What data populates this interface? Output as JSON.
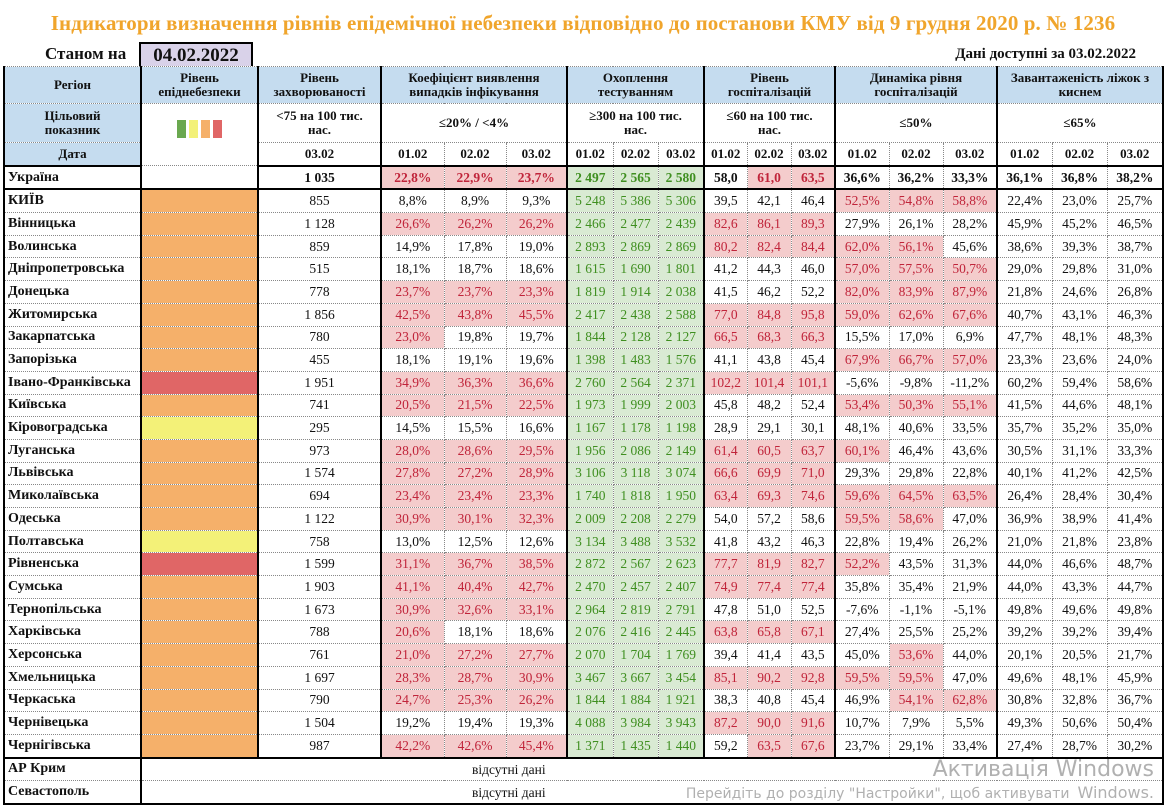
{
  "title": "Індикатори визначення рівнів епідемічної небезпеки відповідно до постанови КМУ від 9 грудня 2020 р. № 1236",
  "as_of_label": "Станом на",
  "as_of_date": "04.02.2022",
  "available_label": "Дані доступні за  03.02.2022",
  "headers": {
    "region": "Регіон",
    "level": "Рівень епіднебезпеки",
    "rate": "Рівень захворюваності",
    "coef": "Коефіцієнт виявлення випадків інфікування",
    "testing": "Охоплення тестуванням",
    "hosp": "Рівень госпіталізацій",
    "dyn": "Динаміка рівня госпіталізацій",
    "beds": "Завантаженість ліжок з киснем",
    "target_label": "Цільовий показник",
    "target_rate": "<75 на 100 тис. нас.",
    "target_coef": "≤20% / <4%",
    "target_testing": "≥300 на 100 тис. нас.",
    "target_hosp": "≤60 на 100 тис. нас.",
    "target_dyn": "≤50%",
    "target_beds": "≤65%",
    "date_label": "Дата",
    "rate_date": "03.02",
    "dates": [
      "01.02",
      "02.02",
      "03.02"
    ]
  },
  "level_colors": {
    "green": "#6aa84f",
    "yellow": "#f3f178",
    "orange": "#f5b06a",
    "red": "#e06666"
  },
  "rows": [
    {
      "name": "Україна",
      "level": "",
      "rate": "1 035",
      "coef": [
        "22,8%",
        "22,9%",
        "23,7%"
      ],
      "coef_bad": [
        1,
        1,
        1
      ],
      "test": [
        "2 497",
        "2 565",
        "2 580"
      ],
      "hosp": [
        "58,0",
        "61,0",
        "63,5"
      ],
      "hosp_bad": [
        0,
        1,
        1
      ],
      "dyn": [
        "36,6%",
        "36,2%",
        "33,3%"
      ],
      "dyn_bad": [
        0,
        0,
        0
      ],
      "beds": [
        "36,1%",
        "36,8%",
        "38,2%"
      ]
    },
    {
      "name": "КИЇВ",
      "level": "o",
      "rate": "855",
      "coef": [
        "8,8%",
        "8,9%",
        "9,3%"
      ],
      "coef_bad": [
        0,
        0,
        0
      ],
      "test": [
        "5 248",
        "5 386",
        "5 306"
      ],
      "hosp": [
        "39,5",
        "42,1",
        "46,4"
      ],
      "hosp_bad": [
        0,
        0,
        0
      ],
      "dyn": [
        "52,5%",
        "54,8%",
        "58,8%"
      ],
      "dyn_bad": [
        1,
        1,
        1
      ],
      "beds": [
        "22,4%",
        "23,0%",
        "25,7%"
      ]
    },
    {
      "name": "Вінницька",
      "level": "o",
      "rate": "1 128",
      "coef": [
        "26,6%",
        "26,2%",
        "26,2%"
      ],
      "coef_bad": [
        1,
        1,
        1
      ],
      "test": [
        "2 466",
        "2 477",
        "2 439"
      ],
      "hosp": [
        "82,6",
        "86,1",
        "89,3"
      ],
      "hosp_bad": [
        1,
        1,
        1
      ],
      "dyn": [
        "27,9%",
        "26,1%",
        "28,2%"
      ],
      "dyn_bad": [
        0,
        0,
        0
      ],
      "beds": [
        "45,9%",
        "45,2%",
        "46,5%"
      ]
    },
    {
      "name": "Волинська",
      "level": "o",
      "rate": "859",
      "coef": [
        "14,9%",
        "17,8%",
        "19,0%"
      ],
      "coef_bad": [
        0,
        0,
        0
      ],
      "test": [
        "2 893",
        "2 869",
        "2 869"
      ],
      "hosp": [
        "80,2",
        "82,4",
        "84,4"
      ],
      "hosp_bad": [
        1,
        1,
        1
      ],
      "dyn": [
        "62,0%",
        "56,1%",
        "45,6%"
      ],
      "dyn_bad": [
        1,
        1,
        0
      ],
      "beds": [
        "38,6%",
        "39,3%",
        "38,7%"
      ]
    },
    {
      "name": "Дніпропетровська",
      "level": "o",
      "rate": "515",
      "coef": [
        "18,1%",
        "18,7%",
        "18,6%"
      ],
      "coef_bad": [
        0,
        0,
        0
      ],
      "test": [
        "1 615",
        "1 690",
        "1 801"
      ],
      "hosp": [
        "41,2",
        "44,3",
        "46,0"
      ],
      "hosp_bad": [
        0,
        0,
        0
      ],
      "dyn": [
        "57,0%",
        "57,5%",
        "50,7%"
      ],
      "dyn_bad": [
        1,
        1,
        1
      ],
      "beds": [
        "29,0%",
        "29,8%",
        "31,0%"
      ]
    },
    {
      "name": "Донецька",
      "level": "o",
      "rate": "778",
      "coef": [
        "23,7%",
        "23,7%",
        "23,3%"
      ],
      "coef_bad": [
        1,
        1,
        1
      ],
      "test": [
        "1 819",
        "1 914",
        "2 038"
      ],
      "hosp": [
        "41,5",
        "46,2",
        "52,2"
      ],
      "hosp_bad": [
        0,
        0,
        0
      ],
      "dyn": [
        "82,0%",
        "83,9%",
        "87,9%"
      ],
      "dyn_bad": [
        1,
        1,
        1
      ],
      "beds": [
        "21,8%",
        "24,6%",
        "26,8%"
      ]
    },
    {
      "name": "Житомирська",
      "level": "o",
      "rate": "1 856",
      "coef": [
        "42,5%",
        "43,8%",
        "45,5%"
      ],
      "coef_bad": [
        1,
        1,
        1
      ],
      "test": [
        "2 417",
        "2 438",
        "2 588"
      ],
      "hosp": [
        "77,0",
        "84,8",
        "95,8"
      ],
      "hosp_bad": [
        1,
        1,
        1
      ],
      "dyn": [
        "59,0%",
        "62,6%",
        "67,6%"
      ],
      "dyn_bad": [
        1,
        1,
        1
      ],
      "beds": [
        "40,7%",
        "43,1%",
        "46,3%"
      ]
    },
    {
      "name": "Закарпатська",
      "level": "o",
      "rate": "780",
      "coef": [
        "23,0%",
        "19,8%",
        "19,7%"
      ],
      "coef_bad": [
        1,
        0,
        0
      ],
      "test": [
        "1 844",
        "2 128",
        "2 127"
      ],
      "hosp": [
        "66,5",
        "68,3",
        "66,3"
      ],
      "hosp_bad": [
        1,
        1,
        1
      ],
      "dyn": [
        "15,5%",
        "17,0%",
        "6,9%"
      ],
      "dyn_bad": [
        0,
        0,
        0
      ],
      "beds": [
        "47,7%",
        "48,1%",
        "48,3%"
      ]
    },
    {
      "name": "Запорізька",
      "level": "o",
      "rate": "455",
      "coef": [
        "18,1%",
        "19,1%",
        "19,6%"
      ],
      "coef_bad": [
        0,
        0,
        0
      ],
      "test": [
        "1 398",
        "1 483",
        "1 576"
      ],
      "hosp": [
        "41,1",
        "43,8",
        "45,4"
      ],
      "hosp_bad": [
        0,
        0,
        0
      ],
      "dyn": [
        "67,9%",
        "66,7%",
        "57,0%"
      ],
      "dyn_bad": [
        1,
        1,
        1
      ],
      "beds": [
        "23,3%",
        "23,6%",
        "24,0%"
      ]
    },
    {
      "name": "Івано-Франківська",
      "level": "r",
      "rate": "1 951",
      "coef": [
        "34,9%",
        "36,3%",
        "36,6%"
      ],
      "coef_bad": [
        1,
        1,
        1
      ],
      "test": [
        "2 760",
        "2 564",
        "2 371"
      ],
      "hosp": [
        "102,2",
        "101,4",
        "101,1"
      ],
      "hosp_bad": [
        1,
        1,
        1
      ],
      "dyn": [
        "-5,6%",
        "-9,8%",
        "-11,2%"
      ],
      "dyn_bad": [
        0,
        0,
        0
      ],
      "beds": [
        "60,2%",
        "59,4%",
        "58,6%"
      ]
    },
    {
      "name": "Київська",
      "level": "o",
      "rate": "741",
      "coef": [
        "20,5%",
        "21,5%",
        "22,5%"
      ],
      "coef_bad": [
        1,
        1,
        1
      ],
      "test": [
        "1 973",
        "1 999",
        "2 003"
      ],
      "hosp": [
        "45,8",
        "48,2",
        "52,4"
      ],
      "hosp_bad": [
        0,
        0,
        0
      ],
      "dyn": [
        "53,4%",
        "50,3%",
        "55,1%"
      ],
      "dyn_bad": [
        1,
        1,
        1
      ],
      "beds": [
        "41,5%",
        "44,6%",
        "48,1%"
      ]
    },
    {
      "name": "Кіровоградська",
      "level": "y",
      "rate": "295",
      "coef": [
        "14,5%",
        "15,5%",
        "16,6%"
      ],
      "coef_bad": [
        0,
        0,
        0
      ],
      "test": [
        "1 167",
        "1 178",
        "1 198"
      ],
      "hosp": [
        "28,9",
        "29,1",
        "30,1"
      ],
      "hosp_bad": [
        0,
        0,
        0
      ],
      "dyn": [
        "48,1%",
        "40,6%",
        "33,5%"
      ],
      "dyn_bad": [
        0,
        0,
        0
      ],
      "beds": [
        "35,7%",
        "35,2%",
        "35,0%"
      ]
    },
    {
      "name": "Луганська",
      "level": "o",
      "rate": "973",
      "coef": [
        "28,0%",
        "28,6%",
        "29,5%"
      ],
      "coef_bad": [
        1,
        1,
        1
      ],
      "test": [
        "1 956",
        "2 086",
        "2 149"
      ],
      "hosp": [
        "61,4",
        "60,5",
        "63,7"
      ],
      "hosp_bad": [
        1,
        1,
        1
      ],
      "dyn": [
        "60,1%",
        "46,4%",
        "43,6%"
      ],
      "dyn_bad": [
        1,
        0,
        0
      ],
      "beds": [
        "30,5%",
        "31,1%",
        "33,3%"
      ]
    },
    {
      "name": "Львівська",
      "level": "o",
      "rate": "1 574",
      "coef": [
        "27,8%",
        "27,2%",
        "28,9%"
      ],
      "coef_bad": [
        1,
        1,
        1
      ],
      "test": [
        "3 106",
        "3 118",
        "3 074"
      ],
      "hosp": [
        "66,6",
        "69,9",
        "71,0"
      ],
      "hosp_bad": [
        1,
        1,
        1
      ],
      "dyn": [
        "29,3%",
        "29,8%",
        "22,8%"
      ],
      "dyn_bad": [
        0,
        0,
        0
      ],
      "beds": [
        "40,1%",
        "41,2%",
        "42,5%"
      ]
    },
    {
      "name": "Миколаївська",
      "level": "o",
      "rate": "694",
      "coef": [
        "23,4%",
        "23,4%",
        "23,3%"
      ],
      "coef_bad": [
        1,
        1,
        1
      ],
      "test": [
        "1 740",
        "1 818",
        "1 950"
      ],
      "hosp": [
        "63,4",
        "69,3",
        "74,6"
      ],
      "hosp_bad": [
        1,
        1,
        1
      ],
      "dyn": [
        "59,6%",
        "64,5%",
        "63,5%"
      ],
      "dyn_bad": [
        1,
        1,
        1
      ],
      "beds": [
        "26,4%",
        "28,4%",
        "30,4%"
      ]
    },
    {
      "name": "Одеська",
      "level": "o",
      "rate": "1 122",
      "coef": [
        "30,9%",
        "30,1%",
        "32,3%"
      ],
      "coef_bad": [
        1,
        1,
        1
      ],
      "test": [
        "2 009",
        "2 208",
        "2 279"
      ],
      "hosp": [
        "54,0",
        "57,2",
        "58,6"
      ],
      "hosp_bad": [
        0,
        0,
        0
      ],
      "dyn": [
        "59,5%",
        "58,6%",
        "47,0%"
      ],
      "dyn_bad": [
        1,
        1,
        0
      ],
      "beds": [
        "36,9%",
        "38,9%",
        "41,4%"
      ]
    },
    {
      "name": "Полтавська",
      "level": "y",
      "rate": "758",
      "coef": [
        "13,0%",
        "12,5%",
        "12,6%"
      ],
      "coef_bad": [
        0,
        0,
        0
      ],
      "test": [
        "3 134",
        "3 488",
        "3 532"
      ],
      "hosp": [
        "41,8",
        "43,2",
        "46,3"
      ],
      "hosp_bad": [
        0,
        0,
        0
      ],
      "dyn": [
        "22,8%",
        "19,4%",
        "26,2%"
      ],
      "dyn_bad": [
        0,
        0,
        0
      ],
      "beds": [
        "21,0%",
        "21,8%",
        "23,8%"
      ]
    },
    {
      "name": "Рівненська",
      "level": "r",
      "rate": "1 599",
      "coef": [
        "31,1%",
        "36,7%",
        "38,5%"
      ],
      "coef_bad": [
        1,
        1,
        1
      ],
      "test": [
        "2 872",
        "2 567",
        "2 623"
      ],
      "hosp": [
        "77,7",
        "81,9",
        "82,7"
      ],
      "hosp_bad": [
        1,
        1,
        1
      ],
      "dyn": [
        "52,2%",
        "43,5%",
        "31,3%"
      ],
      "dyn_bad": [
        1,
        0,
        0
      ],
      "beds": [
        "44,0%",
        "46,6%",
        "48,7%"
      ]
    },
    {
      "name": "Сумська",
      "level": "o",
      "rate": "1 903",
      "coef": [
        "41,1%",
        "40,4%",
        "42,7%"
      ],
      "coef_bad": [
        1,
        1,
        1
      ],
      "test": [
        "2 470",
        "2 457",
        "2 407"
      ],
      "hosp": [
        "74,9",
        "77,4",
        "77,4"
      ],
      "hosp_bad": [
        1,
        1,
        1
      ],
      "dyn": [
        "35,8%",
        "35,4%",
        "21,9%"
      ],
      "dyn_bad": [
        0,
        0,
        0
      ],
      "beds": [
        "44,0%",
        "43,3%",
        "44,7%"
      ]
    },
    {
      "name": "Тернопільська",
      "level": "o",
      "rate": "1 673",
      "coef": [
        "30,9%",
        "32,6%",
        "33,1%"
      ],
      "coef_bad": [
        1,
        1,
        1
      ],
      "test": [
        "2 964",
        "2 819",
        "2 791"
      ],
      "hosp": [
        "47,8",
        "51,0",
        "52,5"
      ],
      "hosp_bad": [
        0,
        0,
        0
      ],
      "dyn": [
        "-7,6%",
        "-1,1%",
        "-5,1%"
      ],
      "dyn_bad": [
        0,
        0,
        0
      ],
      "beds": [
        "49,8%",
        "49,6%",
        "49,8%"
      ]
    },
    {
      "name": "Харківська",
      "level": "o",
      "rate": "788",
      "coef": [
        "20,6%",
        "18,1%",
        "18,6%"
      ],
      "coef_bad": [
        1,
        0,
        0
      ],
      "test": [
        "2 076",
        "2 416",
        "2 445"
      ],
      "hosp": [
        "63,8",
        "65,8",
        "67,1"
      ],
      "hosp_bad": [
        1,
        1,
        1
      ],
      "dyn": [
        "27,4%",
        "25,5%",
        "25,2%"
      ],
      "dyn_bad": [
        0,
        0,
        0
      ],
      "beds": [
        "39,2%",
        "39,2%",
        "39,4%"
      ]
    },
    {
      "name": "Херсонська",
      "level": "o",
      "rate": "761",
      "coef": [
        "21,0%",
        "27,2%",
        "27,7%"
      ],
      "coef_bad": [
        1,
        1,
        1
      ],
      "test": [
        "2 070",
        "1 704",
        "1 769"
      ],
      "hosp": [
        "39,4",
        "41,4",
        "43,5"
      ],
      "hosp_bad": [
        0,
        0,
        0
      ],
      "dyn": [
        "45,0%",
        "53,6%",
        "44,0%"
      ],
      "dyn_bad": [
        0,
        1,
        0
      ],
      "beds": [
        "20,1%",
        "20,5%",
        "21,7%"
      ]
    },
    {
      "name": "Хмельницька",
      "level": "o",
      "rate": "1 697",
      "coef": [
        "28,3%",
        "28,7%",
        "30,9%"
      ],
      "coef_bad": [
        1,
        1,
        1
      ],
      "test": [
        "3 467",
        "3 667",
        "3 454"
      ],
      "hosp": [
        "85,1",
        "90,2",
        "92,8"
      ],
      "hosp_bad": [
        1,
        1,
        1
      ],
      "dyn": [
        "59,5%",
        "59,5%",
        "47,0%"
      ],
      "dyn_bad": [
        1,
        1,
        0
      ],
      "beds": [
        "49,6%",
        "48,1%",
        "45,9%"
      ]
    },
    {
      "name": "Черкаська",
      "level": "o",
      "rate": "790",
      "coef": [
        "24,7%",
        "25,3%",
        "26,2%"
      ],
      "coef_bad": [
        1,
        1,
        1
      ],
      "test": [
        "1 844",
        "1 884",
        "1 921"
      ],
      "hosp": [
        "38,3",
        "40,8",
        "45,4"
      ],
      "hosp_bad": [
        0,
        0,
        0
      ],
      "dyn": [
        "46,9%",
        "54,1%",
        "62,8%"
      ],
      "dyn_bad": [
        0,
        1,
        1
      ],
      "beds": [
        "30,8%",
        "32,8%",
        "36,7%"
      ]
    },
    {
      "name": "Чернівецька",
      "level": "o",
      "rate": "1 504",
      "coef": [
        "19,2%",
        "19,4%",
        "19,3%"
      ],
      "coef_bad": [
        0,
        0,
        0
      ],
      "test": [
        "4 088",
        "3 984",
        "3 943"
      ],
      "hosp": [
        "87,2",
        "90,0",
        "91,6"
      ],
      "hosp_bad": [
        1,
        1,
        1
      ],
      "dyn": [
        "10,7%",
        "7,9%",
        "5,5%"
      ],
      "dyn_bad": [
        0,
        0,
        0
      ],
      "beds": [
        "49,3%",
        "50,6%",
        "50,4%"
      ]
    },
    {
      "name": "Чернігівська",
      "level": "o",
      "rate": "987",
      "coef": [
        "42,2%",
        "42,6%",
        "45,4%"
      ],
      "coef_bad": [
        1,
        1,
        1
      ],
      "test": [
        "1 371",
        "1 435",
        "1 440"
      ],
      "hosp": [
        "59,2",
        "63,5",
        "67,6"
      ],
      "hosp_bad": [
        0,
        1,
        1
      ],
      "dyn": [
        "23,7%",
        "29,1%",
        "33,4%"
      ],
      "dyn_bad": [
        0,
        0,
        0
      ],
      "beds": [
        "27,4%",
        "28,7%",
        "30,2%"
      ]
    }
  ],
  "missing_rows": [
    {
      "name": "АР Крим",
      "text": "відсутні дані"
    },
    {
      "name": "Севастополь",
      "text": "відсутні дані"
    }
  ],
  "watermark": {
    "line1": "Активація Windows",
    "line2": "Перейдіть до розділу \"Настройки\", щоб активувати",
    "line3": "Windows."
  }
}
